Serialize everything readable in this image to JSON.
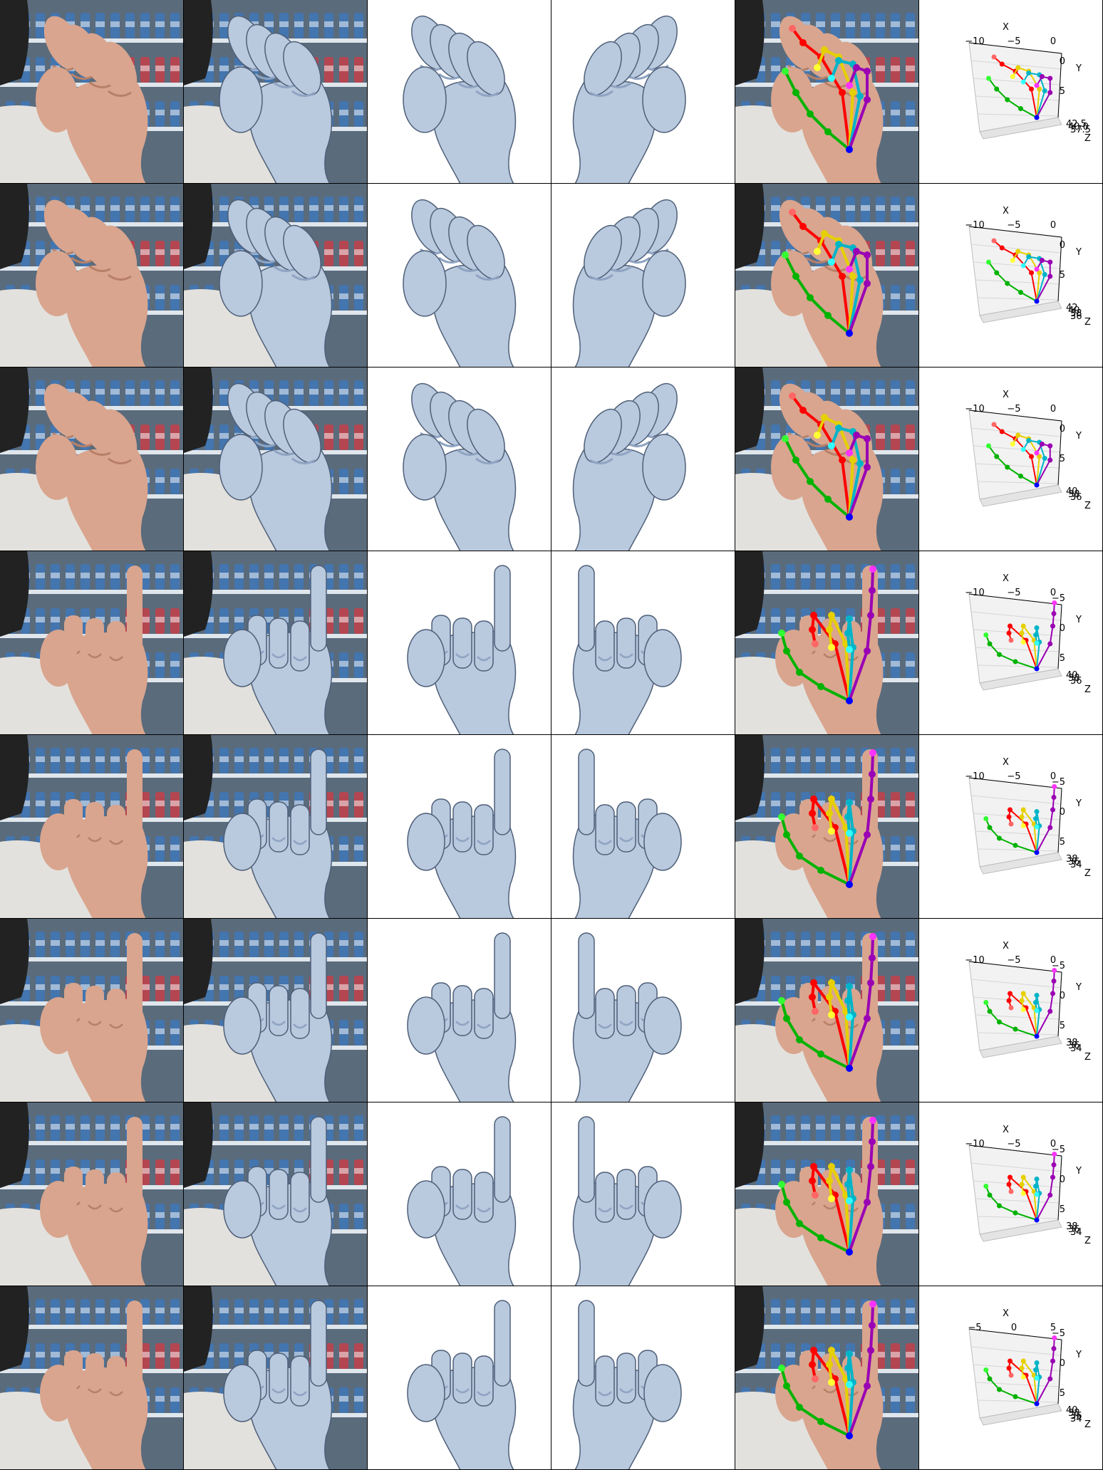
{
  "columns": [
    {
      "kind": "photo"
    },
    {
      "kind": "photo_mesh_overlay"
    },
    {
      "kind": "mesh_front"
    },
    {
      "kind": "mesh_side"
    },
    {
      "kind": "photo_keypoints"
    },
    {
      "kind": "plot3d"
    }
  ],
  "rows": [
    {
      "pose": "fist",
      "plot": {
        "axis_x": "X",
        "axis_y": "Y",
        "axis_z": "Z",
        "x_ticks": [
          "−10",
          "−5",
          "0"
        ],
        "y_ticks": [
          "0",
          "5"
        ],
        "z_ticks": [
          "42.5",
          "40.0",
          "37.5"
        ]
      }
    },
    {
      "pose": "fist",
      "plot": {
        "axis_x": "X",
        "axis_y": "Y",
        "axis_z": "Z",
        "x_ticks": [
          "−10",
          "−5",
          "0"
        ],
        "y_ticks": [
          "0",
          "5"
        ],
        "z_ticks": [
          "42",
          "40",
          "38",
          "36"
        ]
      }
    },
    {
      "pose": "fist",
      "plot": {
        "axis_x": "X",
        "axis_y": "Y",
        "axis_z": "Z",
        "x_ticks": [
          "−10",
          "−5",
          "0"
        ],
        "y_ticks": [
          "0",
          "5"
        ],
        "z_ticks": [
          "40",
          "38",
          "36"
        ]
      }
    },
    {
      "pose": "point",
      "plot": {
        "axis_x": "X",
        "axis_y": "Y",
        "axis_z": "Z",
        "x_ticks": [
          "−10",
          "−5",
          "0"
        ],
        "y_ticks": [
          "−5",
          "0",
          "5"
        ],
        "z_ticks": [
          "40",
          "38",
          "36"
        ]
      }
    },
    {
      "pose": "point",
      "plot": {
        "axis_x": "X",
        "axis_y": "Y",
        "axis_z": "Z",
        "x_ticks": [
          "−10",
          "−5",
          "0"
        ],
        "y_ticks": [
          "−5",
          "0",
          "5"
        ],
        "z_ticks": [
          "38",
          "36",
          "34"
        ]
      }
    },
    {
      "pose": "point",
      "plot": {
        "axis_x": "X",
        "axis_y": "Y",
        "axis_z": "Z",
        "x_ticks": [
          "−10",
          "−5",
          "0"
        ],
        "y_ticks": [
          "−5",
          "0",
          "5"
        ],
        "z_ticks": [
          "38",
          "36",
          "34"
        ]
      }
    },
    {
      "pose": "point",
      "plot": {
        "axis_x": "X",
        "axis_y": "Y",
        "axis_z": "Z",
        "x_ticks": [
          "−10",
          "−5",
          "0"
        ],
        "y_ticks": [
          "−5",
          "0",
          "5"
        ],
        "z_ticks": [
          "38",
          "36",
          "34"
        ]
      }
    },
    {
      "pose": "point",
      "plot": {
        "axis_x": "X",
        "axis_y": "Y",
        "axis_z": "Z",
        "x_ticks": [
          "−5",
          "0",
          "5"
        ],
        "y_ticks": [
          "−5",
          "0",
          "5"
        ],
        "z_ticks": [
          "40",
          "38",
          "36",
          "34"
        ]
      }
    }
  ],
  "colors": {
    "skin": "#d9a58e",
    "skin_shade": "#b88068",
    "mesh": "#b9c9de",
    "mesh_shade": "#8fa4c2",
    "mesh_edge": "#4e5f78",
    "shirt": "#e3e1dd",
    "fridge_bg": "#5a6b7c",
    "shelf": "#dfe6ec",
    "bottle_blue": "#3f77b8",
    "can_red": "#c4404a",
    "hair": "#222222",
    "thumb": "#00b300",
    "index": "#ff0000",
    "middle": "#e6d000",
    "ring": "#00b4c8",
    "pinky": "#9a00b4",
    "wrist": "#0000ff",
    "tip_thumb": "#33ff33",
    "tip_index": "#ff6666",
    "tip_middle": "#ffff33",
    "tip_ring": "#33ffff",
    "tip_pinky": "#ff33ff"
  }
}
